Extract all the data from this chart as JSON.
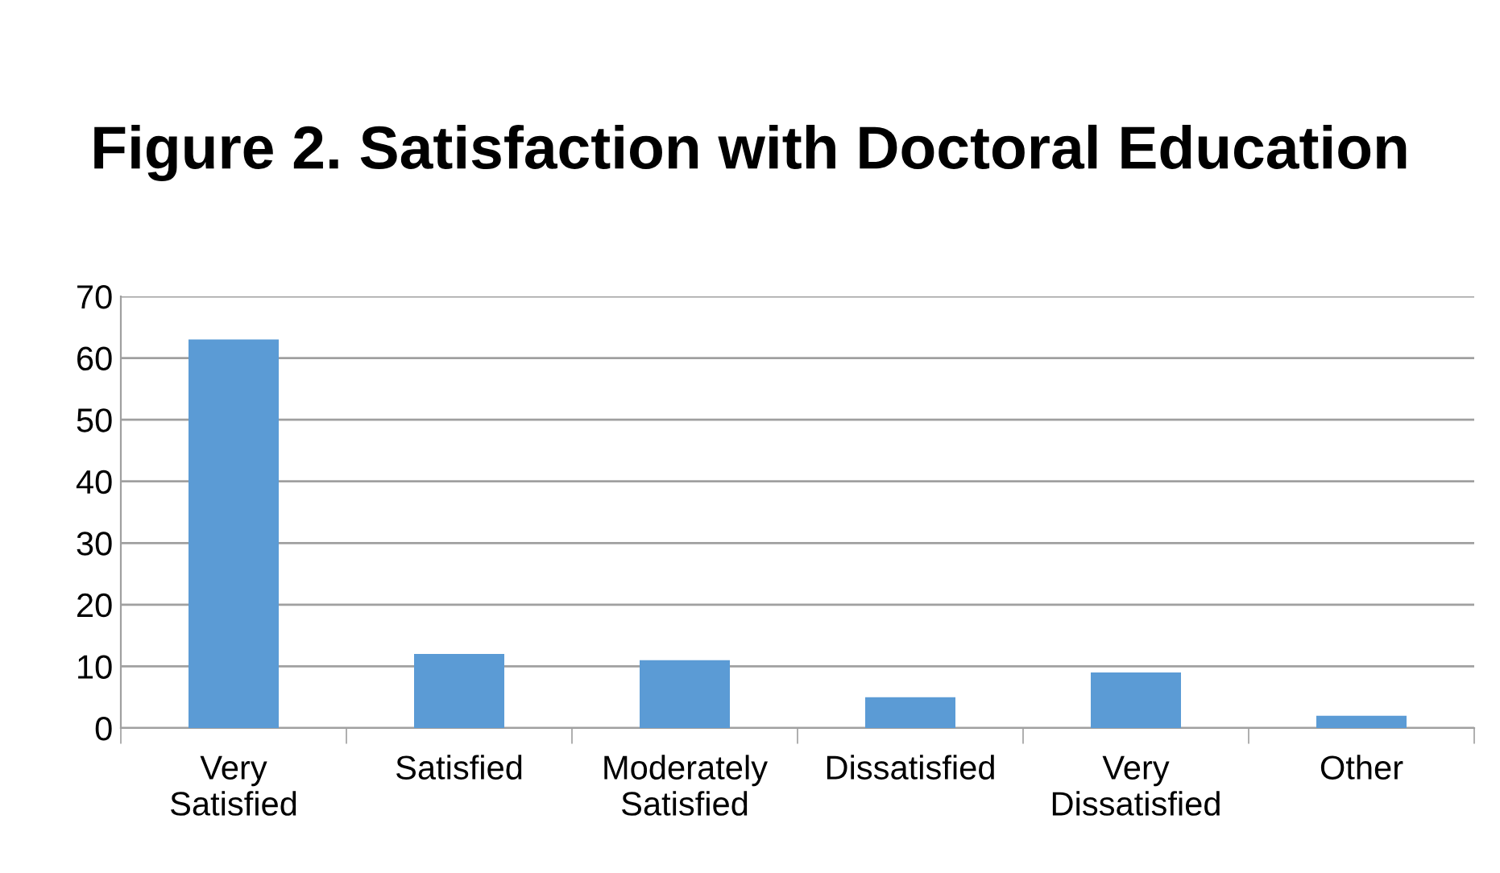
{
  "chart_data": {
    "type": "bar",
    "title": "Figure 2. Satisfaction with Doctoral Education",
    "categories": [
      "Very\nSatisfied",
      "Satisfied",
      "Moderately\nSatisfied",
      "Dissatisfied",
      "Very\nDissatisfied",
      "Other"
    ],
    "values": [
      63,
      12,
      11,
      5,
      9,
      2
    ],
    "color": "#5b9bd5",
    "ylim": [
      0,
      70
    ],
    "yticks": [
      0,
      10,
      20,
      30,
      40,
      50,
      60,
      70
    ],
    "grid": "y",
    "legend": false
  }
}
